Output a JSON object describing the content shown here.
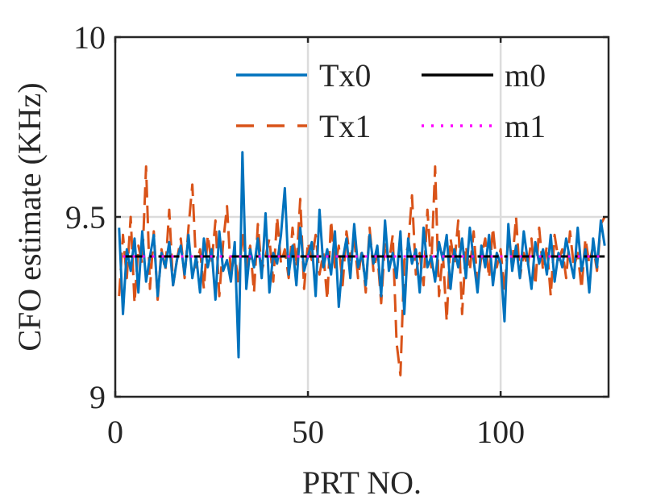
{
  "chart_data": {
    "type": "line",
    "title": "",
    "xlabel": "PRT NO.",
    "ylabel": "CFO estimate (KHz)",
    "xlim": [
      0,
      128
    ],
    "ylim": [
      9,
      10
    ],
    "xticks": [
      0,
      50,
      100
    ],
    "yticks": [
      9,
      9.5,
      10
    ],
    "xtick_labels": [
      "0",
      "50",
      "100"
    ],
    "ytick_labels": [
      "9",
      "9.5",
      "10"
    ],
    "grid": true,
    "legend_position": "top-right",
    "legend_columns": 2,
    "series": [
      {
        "name": "Tx0",
        "style": "solid",
        "color": "#0072BD",
        "x_start": 1,
        "values": [
          9.47,
          9.23,
          9.41,
          9.35,
          9.44,
          9.29,
          9.46,
          9.32,
          9.39,
          9.45,
          9.28,
          9.4,
          9.36,
          9.43,
          9.31,
          9.38,
          9.42,
          9.34,
          9.45,
          9.33,
          9.39,
          9.29,
          9.44,
          9.36,
          9.41,
          9.27,
          9.46,
          9.35,
          9.38,
          9.32,
          9.43,
          9.11,
          9.68,
          9.3,
          9.41,
          9.36,
          9.44,
          9.33,
          9.51,
          9.29,
          9.4,
          9.37,
          9.45,
          9.58,
          9.34,
          9.42,
          9.31,
          9.47,
          9.35,
          9.39,
          9.43,
          9.28,
          9.52,
          9.36,
          9.41,
          9.34,
          9.46,
          9.25,
          9.38,
          9.44,
          9.33,
          9.48,
          9.36,
          9.4,
          9.31,
          9.45,
          9.37,
          9.42,
          9.28,
          9.49,
          9.35,
          9.4,
          9.33,
          9.46,
          9.23,
          9.44,
          9.37,
          9.41,
          9.29,
          9.47,
          9.36,
          9.39,
          9.32,
          9.43,
          9.38,
          9.45,
          9.3,
          9.41,
          9.36,
          9.44,
          9.33,
          9.47,
          9.38,
          9.29,
          9.42,
          9.36,
          9.45,
          9.31,
          9.4,
          9.37,
          9.21,
          9.48,
          9.35,
          9.42,
          9.33,
          9.46,
          9.38,
          9.3,
          9.43,
          9.37,
          9.41,
          9.34,
          9.45,
          9.32,
          9.4,
          9.36,
          9.44,
          9.38,
          9.33,
          9.47,
          9.35,
          9.41,
          9.29,
          9.44,
          9.36,
          9.49,
          9.42
        ]
      },
      {
        "name": "Tx1",
        "style": "dashed",
        "color": "#D95319",
        "x_start": 1,
        "values": [
          9.28,
          9.45,
          9.33,
          9.5,
          9.26,
          9.42,
          9.37,
          9.64,
          9.3,
          9.46,
          9.27,
          9.41,
          9.35,
          9.52,
          9.31,
          9.38,
          9.44,
          9.33,
          9.47,
          9.59,
          9.36,
          9.41,
          9.3,
          9.45,
          9.37,
          9.49,
          9.28,
          9.43,
          9.53,
          9.34,
          9.4,
          9.31,
          9.46,
          9.36,
          9.42,
          9.29,
          9.48,
          9.35,
          9.39,
          9.44,
          9.32,
          9.5,
          9.37,
          9.41,
          9.33,
          9.47,
          9.36,
          9.55,
          9.3,
          9.43,
          9.38,
          9.45,
          9.34,
          9.4,
          9.27,
          9.49,
          9.36,
          9.42,
          9.31,
          9.46,
          9.38,
          9.44,
          9.33,
          9.41,
          9.29,
          9.47,
          9.35,
          9.4,
          9.26,
          9.43,
          9.37,
          9.45,
          9.15,
          9.06,
          9.38,
          9.42,
          9.56,
          9.34,
          9.4,
          9.31,
          9.52,
          9.36,
          9.64,
          9.28,
          9.4,
          9.21,
          9.44,
          9.37,
          9.49,
          9.23,
          9.42,
          9.35,
          9.46,
          9.31,
          9.39,
          9.44,
          9.33,
          9.47,
          9.36,
          9.41,
          9.29,
          9.45,
          9.37,
          9.5,
          9.33,
          9.4,
          9.36,
          9.44,
          9.31,
          9.47,
          9.35,
          9.42,
          9.28,
          9.45,
          9.38,
          9.41,
          9.33,
          9.46,
          9.36,
          9.4,
          9.3,
          9.44,
          9.37,
          9.42,
          9.35,
          9.48,
          9.5
        ]
      },
      {
        "name": "m0",
        "style": "dashdot",
        "color": "#000000",
        "x": [
          2,
          127
        ],
        "values": [
          9.39,
          9.39
        ]
      },
      {
        "name": "m1",
        "style": "dotted",
        "color": "#FF00FF",
        "x": [
          2,
          127
        ],
        "values": [
          9.39,
          9.39
        ]
      }
    ]
  }
}
